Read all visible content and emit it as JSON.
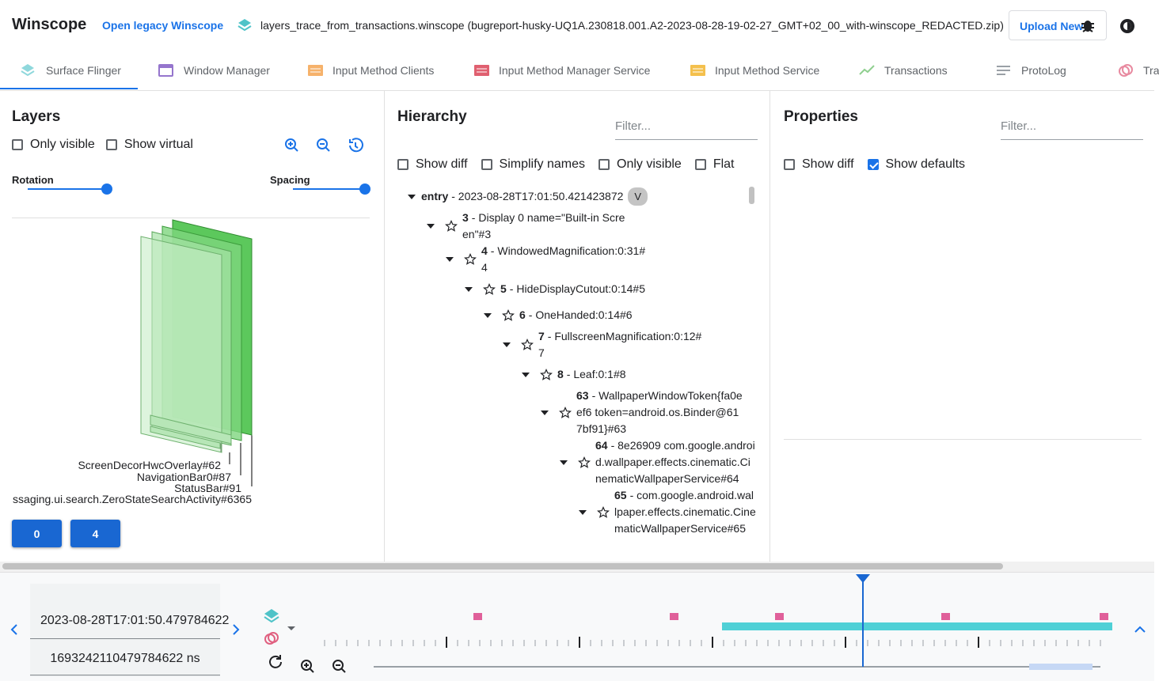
{
  "header": {
    "title": "Winscope",
    "legacy_link": "Open legacy Winscope",
    "trace_file": "layers_trace_from_transactions.winscope (bugreport-husky-UQ1A.230818.001.A2-2023-08-28-19-02-27_GMT+02_00_with-winscope_REDACTED.zip)",
    "upload_button": "Upload New"
  },
  "tabs": [
    "Surface Flinger",
    "Window Manager",
    "Input Method Clients",
    "Input Method Manager Service",
    "Input Method Service",
    "Transactions",
    "ProtoLog",
    "Tra"
  ],
  "layers": {
    "title": "Layers",
    "options": [
      {
        "label": "Only visible",
        "checked": false
      },
      {
        "label": "Show virtual",
        "checked": false
      }
    ],
    "sliders": [
      "Rotation",
      "Spacing"
    ],
    "layer_labels": [
      "ScreenDecorHwcOverlay#62",
      "NavigationBar0#87",
      "StatusBar#91",
      "ssaging.ui.search.ZeroStateSearchActivity#6365"
    ],
    "display_buttons": [
      "0",
      "4"
    ]
  },
  "hierarchy": {
    "title": "Hierarchy",
    "filter_placeholder": "Filter...",
    "options": [
      {
        "label": "Show diff",
        "checked": false
      },
      {
        "label": "Simplify names",
        "checked": false
      },
      {
        "label": "Only visible",
        "checked": false
      },
      {
        "label": "Flat",
        "checked": false
      }
    ],
    "tree": {
      "id": "entry",
      "label": "- 2023-08-28T17:01:50.421423872",
      "chip": "V",
      "children": [
        {
          "id": "3",
          "label": "- Display 0 name=\"Built-in Screen\"#3",
          "children": [
            {
              "id": "4",
              "label": "- WindowedMagnification:0:31#4",
              "children": [
                {
                  "id": "5",
                  "label": "- HideDisplayCutout:0:14#5",
                  "children": [
                    {
                      "id": "6",
                      "label": "- OneHanded:0:14#6",
                      "children": [
                        {
                          "id": "7",
                          "label": "- FullscreenMagnification:0:12#7",
                          "children": [
                            {
                              "id": "8",
                              "label": "- Leaf:0:1#8",
                              "children": [
                                {
                                  "id": "63",
                                  "label": "- WallpaperWindowToken{fa0eef6 token=android.os.Binder@617bf91}#63",
                                  "children": [
                                    {
                                      "id": "64",
                                      "label": "- 8e26909 com.google.android.wallpaper.effects.cinematic.CinematicWallpaperService#64",
                                      "children": [
                                        {
                                          "id": "65",
                                          "label": "- com.google.android.wallpaper.effects.cinematic.CinematicWallpaperService#65"
                                        }
                                      ]
                                    }
                                  ]
                                }
                              ]
                            }
                          ]
                        }
                      ]
                    }
                  ]
                }
              ]
            }
          ]
        }
      ]
    }
  },
  "properties": {
    "title": "Properties",
    "filter_placeholder": "Filter...",
    "options": [
      {
        "label": "Show diff",
        "checked": false
      },
      {
        "label": "Show defaults",
        "checked": true
      }
    ]
  },
  "timeline": {
    "timestamp": "2023-08-28T17:01:50.479784622",
    "timestamp_ns": "1693242110479784622 ns"
  }
}
